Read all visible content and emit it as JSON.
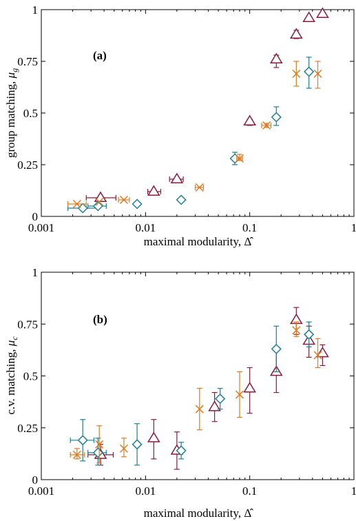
{
  "chart_data": [
    {
      "type": "scatter",
      "panel_label": "(a)",
      "xlabel": "maximal modularity, Δ̂",
      "ylabel": "group matching, μg",
      "ylabel_main": "group matching, ",
      "ylabel_sym": "μ",
      "ylabel_sub": "g",
      "xscale": "log",
      "xlim": [
        0.001,
        1
      ],
      "ylim": [
        0,
        1
      ],
      "xticks": [
        0.001,
        0.01,
        0.1,
        1
      ],
      "xtick_labels": [
        "0.001",
        "0.01",
        "0.1",
        "1"
      ],
      "yticks": [
        0,
        0.25,
        0.5,
        0.75,
        1
      ],
      "ytick_labels": [
        "0",
        "0.25",
        "0.5",
        "0.75",
        "1"
      ],
      "series": [
        {
          "marker": "triangle",
          "color": "#8b1a3a",
          "points": [
            {
              "x": 0.0037,
              "y": 0.09,
              "xerr": [
                0.0027,
                0.0052
              ],
              "yerr": [
                0.09,
                0.09
              ]
            },
            {
              "x": 0.012,
              "y": 0.12,
              "xerr": [
                0.0105,
                0.014
              ],
              "yerr": [
                0.12,
                0.12
              ]
            },
            {
              "x": 0.02,
              "y": 0.18,
              "xerr": [
                0.017,
                0.023
              ],
              "yerr": [
                0.17,
                0.18
              ]
            },
            {
              "x": 0.1,
              "y": 0.46,
              "xerr": [
                0.1,
                0.1
              ],
              "yerr": [
                0.44,
                0.47
              ]
            },
            {
              "x": 0.18,
              "y": 0.76,
              "xerr": [
                0.18,
                0.18
              ],
              "yerr": [
                0.72,
                0.78
              ]
            },
            {
              "x": 0.28,
              "y": 0.88,
              "xerr": [
                0.28,
                0.28
              ],
              "yerr": [
                0.86,
                0.9
              ]
            },
            {
              "x": 0.37,
              "y": 0.96,
              "xerr": [
                0.37,
                0.37
              ],
              "yerr": [
                0.96,
                0.96
              ]
            },
            {
              "x": 0.5,
              "y": 0.98,
              "xerr": [
                0.5,
                0.5
              ],
              "yerr": [
                0.98,
                0.98
              ]
            }
          ]
        },
        {
          "marker": "diamond",
          "color": "#1a7f95",
          "points": [
            {
              "x": 0.0025,
              "y": 0.04,
              "xerr": [
                0.0018,
                0.0035
              ],
              "yerr": [
                0.04,
                0.04
              ]
            },
            {
              "x": 0.0035,
              "y": 0.05,
              "xerr": [
                0.0028,
                0.0042
              ],
              "yerr": [
                0.05,
                0.05
              ]
            },
            {
              "x": 0.0083,
              "y": 0.06,
              "xerr": [
                0.0083,
                0.0083
              ],
              "yerr": [
                0.06,
                0.06
              ]
            },
            {
              "x": 0.022,
              "y": 0.08,
              "xerr": [
                0.022,
                0.022
              ],
              "yerr": [
                0.08,
                0.08
              ]
            },
            {
              "x": 0.072,
              "y": 0.28,
              "xerr": [
                0.072,
                0.072
              ],
              "yerr": [
                0.25,
                0.31
              ]
            },
            {
              "x": 0.18,
              "y": 0.48,
              "xerr": [
                0.18,
                0.18
              ],
              "yerr": [
                0.44,
                0.53
              ]
            },
            {
              "x": 0.37,
              "y": 0.7,
              "xerr": [
                0.37,
                0.37
              ],
              "yerr": [
                0.62,
                0.77
              ]
            }
          ]
        },
        {
          "marker": "cross",
          "color": "#e07a20",
          "points": [
            {
              "x": 0.0022,
              "y": 0.06,
              "xerr": [
                0.0018,
                0.0027
              ],
              "yerr": [
                0.06,
                0.06
              ]
            },
            {
              "x": 0.0036,
              "y": 0.07,
              "xerr": [
                0.0036,
                0.0036
              ],
              "yerr": [
                0.07,
                0.07
              ]
            },
            {
              "x": 0.0062,
              "y": 0.08,
              "xerr": [
                0.0055,
                0.007
              ],
              "yerr": [
                0.08,
                0.08
              ]
            },
            {
              "x": 0.033,
              "y": 0.14,
              "xerr": [
                0.03,
                0.036
              ],
              "yerr": [
                0.14,
                0.14
              ]
            },
            {
              "x": 0.08,
              "y": 0.28,
              "xerr": [
                0.075,
                0.085
              ],
              "yerr": [
                0.27,
                0.3
              ]
            },
            {
              "x": 0.145,
              "y": 0.44,
              "xerr": [
                0.13,
                0.16
              ],
              "yerr": [
                0.43,
                0.45
              ]
            },
            {
              "x": 0.28,
              "y": 0.69,
              "xerr": [
                0.28,
                0.28
              ],
              "yerr": [
                0.63,
                0.75
              ]
            },
            {
              "x": 0.45,
              "y": 0.69,
              "xerr": [
                0.45,
                0.45
              ],
              "yerr": [
                0.62,
                0.75
              ]
            }
          ]
        }
      ]
    },
    {
      "type": "scatter",
      "panel_label": "(b)",
      "xlabel": "maximal modularity, Δ̂",
      "ylabel": "c.v. matching, μc",
      "ylabel_main": "c.v. matching, ",
      "ylabel_sym": "μ",
      "ylabel_sub": "c",
      "xscale": "log",
      "xlim": [
        0.001,
        1
      ],
      "ylim": [
        0,
        1
      ],
      "xticks": [
        0.001,
        0.01,
        0.1,
        1
      ],
      "xtick_labels": [
        "0.001",
        "0.01",
        "0.1",
        "1"
      ],
      "yticks": [
        0,
        0.25,
        0.5,
        0.75,
        1
      ],
      "ytick_labels": [
        "0",
        "0.25",
        "0.5",
        "0.75",
        "1"
      ],
      "series": [
        {
          "marker": "triangle",
          "color": "#8b1a3a",
          "points": [
            {
              "x": 0.0037,
              "y": 0.12,
              "xerr": [
                0.0028,
                0.0049
              ],
              "yerr": [
                0.07,
                0.17
              ]
            },
            {
              "x": 0.012,
              "y": 0.2,
              "xerr": [
                0.012,
                0.012
              ],
              "yerr": [
                0.1,
                0.29
              ]
            },
            {
              "x": 0.02,
              "y": 0.14,
              "xerr": [
                0.02,
                0.02
              ],
              "yerr": [
                0.05,
                0.23
              ]
            },
            {
              "x": 0.046,
              "y": 0.35,
              "xerr": [
                0.046,
                0.046
              ],
              "yerr": [
                0.28,
                0.42
              ]
            },
            {
              "x": 0.1,
              "y": 0.44,
              "xerr": [
                0.1,
                0.1
              ],
              "yerr": [
                0.32,
                0.54
              ]
            },
            {
              "x": 0.18,
              "y": 0.52,
              "xerr": [
                0.18,
                0.18
              ],
              "yerr": [
                0.42,
                0.63
              ]
            },
            {
              "x": 0.28,
              "y": 0.77,
              "xerr": [
                0.28,
                0.28
              ],
              "yerr": [
                0.7,
                0.83
              ]
            },
            {
              "x": 0.37,
              "y": 0.67,
              "xerr": [
                0.37,
                0.37
              ],
              "yerr": [
                0.59,
                0.74
              ]
            },
            {
              "x": 0.5,
              "y": 0.61,
              "xerr": [
                0.5,
                0.5
              ],
              "yerr": [
                0.55,
                0.65
              ]
            }
          ]
        },
        {
          "marker": "diamond",
          "color": "#1a7f95",
          "points": [
            {
              "x": 0.0025,
              "y": 0.19,
              "xerr": [
                0.0019,
                0.0032
              ],
              "yerr": [
                0.09,
                0.29
              ]
            },
            {
              "x": 0.0035,
              "y": 0.13,
              "xerr": [
                0.0028,
                0.0042
              ],
              "yerr": [
                0.07,
                0.2
              ]
            },
            {
              "x": 0.0083,
              "y": 0.17,
              "xerr": [
                0.0083,
                0.0083
              ],
              "yerr": [
                0.07,
                0.27
              ]
            },
            {
              "x": 0.022,
              "y": 0.14,
              "xerr": [
                0.022,
                0.022
              ],
              "yerr": [
                0.1,
                0.18
              ]
            },
            {
              "x": 0.052,
              "y": 0.39,
              "xerr": [
                0.052,
                0.052
              ],
              "yerr": [
                0.34,
                0.44
              ]
            },
            {
              "x": 0.18,
              "y": 0.63,
              "xerr": [
                0.18,
                0.18
              ],
              "yerr": [
                0.52,
                0.74
              ]
            },
            {
              "x": 0.37,
              "y": 0.7,
              "xerr": [
                0.37,
                0.37
              ],
              "yerr": [
                0.64,
                0.76
              ]
            }
          ]
        },
        {
          "marker": "cross",
          "color": "#e07a20",
          "points": [
            {
              "x": 0.0022,
              "y": 0.12,
              "xerr": [
                0.0019,
                0.0026
              ],
              "yerr": [
                0.1,
                0.15
              ]
            },
            {
              "x": 0.0036,
              "y": 0.17,
              "xerr": [
                0.0036,
                0.0036
              ],
              "yerr": [
                0.08,
                0.26
              ]
            },
            {
              "x": 0.0062,
              "y": 0.15,
              "xerr": [
                0.0062,
                0.0062
              ],
              "yerr": [
                0.11,
                0.2
              ]
            },
            {
              "x": 0.033,
              "y": 0.34,
              "xerr": [
                0.033,
                0.033
              ],
              "yerr": [
                0.24,
                0.44
              ]
            },
            {
              "x": 0.08,
              "y": 0.41,
              "xerr": [
                0.08,
                0.08
              ],
              "yerr": [
                0.3,
                0.52
              ]
            },
            {
              "x": 0.28,
              "y": 0.72,
              "xerr": [
                0.28,
                0.28
              ],
              "yerr": [
                0.69,
                0.76
              ]
            },
            {
              "x": 0.45,
              "y": 0.6,
              "xerr": [
                0.45,
                0.45
              ],
              "yerr": [
                0.54,
                0.68
              ]
            }
          ]
        }
      ]
    }
  ]
}
